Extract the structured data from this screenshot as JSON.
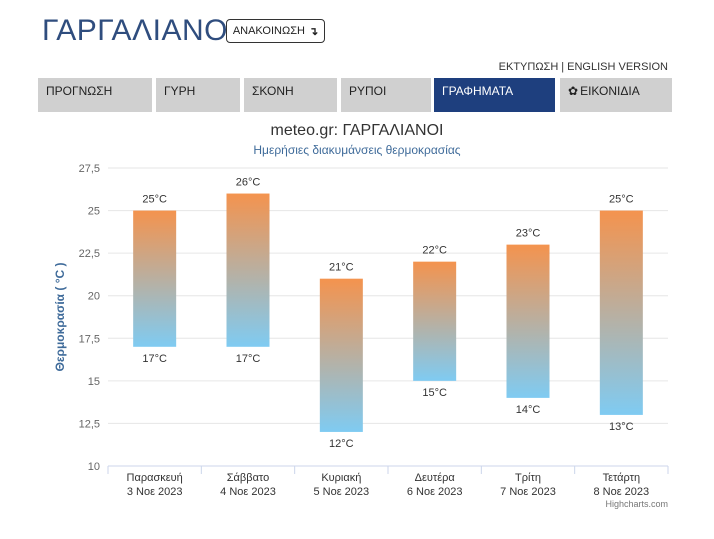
{
  "header": {
    "town": "ΓΑΡΓΑΛΙΑΝΟΙ",
    "announce_label": "ΑΝΑΚΟΙΝΩΣΗ",
    "announce_icon": "arrow-down-return-icon",
    "print_label": "ΕΚΤΥΠΩΣΗ",
    "separator": "|",
    "english_label": "ENGLISH VERSION"
  },
  "tabs": [
    {
      "label": "ΠΡΟΓΝΩΣΗ",
      "active": false
    },
    {
      "label": "ΓΥΡΗ",
      "active": false
    },
    {
      "label": "ΣΚΟΝΗ",
      "active": false
    },
    {
      "label": "ΡΥΠΟΙ",
      "active": false
    },
    {
      "label": "ΓΡΑΦΗΜΑΤΑ",
      "active": true
    },
    {
      "label": "ΕΙΚΟΝΙΔΙΑ",
      "active": false,
      "icon": "gear-icon"
    }
  ],
  "colors": {
    "brand": "#2f4d7e",
    "active_tab": "#1e3f7e",
    "tab_bg": "#d0d0d0",
    "bar_top": "#f4934e",
    "bar_bottom": "#7fcbf2",
    "subtitle": "#3f6b9a"
  },
  "chart_data": {
    "type": "bar",
    "subtype": "columnrange",
    "title": "meteo.gr: ΓΑΡΓΑΛΙΑΝΟΙ",
    "subtitle": "Ημερήσιες διακυμάνσεις θερμοκρασίας",
    "ylabel": "Θερμοκρασία ( °C )",
    "ylim": [
      10,
      27.5
    ],
    "yticks": [
      10,
      12.5,
      15,
      17.5,
      20,
      22.5,
      25,
      27.5
    ],
    "ytick_labels": [
      "10",
      "12,5",
      "15",
      "17,5",
      "20",
      "22,5",
      "25",
      "27,5"
    ],
    "grid": true,
    "unit": "°C",
    "categories": [
      {
        "day": "Παρασκευή",
        "date": "3 Νοε 2023"
      },
      {
        "day": "Σάββατο",
        "date": "4 Νοε 2023"
      },
      {
        "day": "Κυριακή",
        "date": "5 Νοε 2023"
      },
      {
        "day": "Δευτέρα",
        "date": "6 Νοε 2023"
      },
      {
        "day": "Τρίτη",
        "date": "7 Νοε 2023"
      },
      {
        "day": "Τετάρτη",
        "date": "8 Νοε 2023"
      }
    ],
    "low": [
      17,
      17,
      12,
      15,
      14,
      13
    ],
    "high": [
      25,
      26,
      21,
      22,
      23,
      25
    ]
  },
  "credits": "Highcharts.com"
}
